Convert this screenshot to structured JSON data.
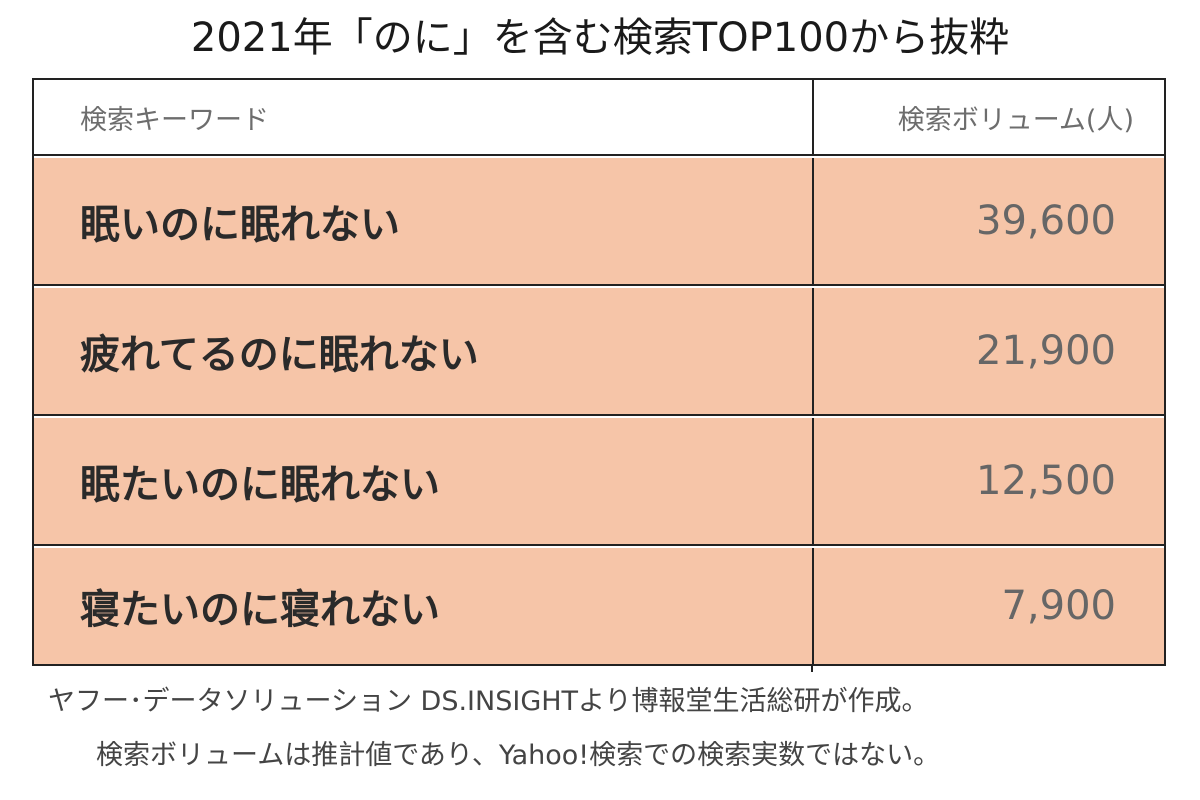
{
  "title": "2021年「のに」を含む検索TOP100から抜粋",
  "table": {
    "headers": {
      "keyword": "検索キーワード",
      "volume": "検索ボリューム(人)"
    },
    "rows": [
      {
        "keyword": "眠いのに眠れない",
        "volume": "39,600"
      },
      {
        "keyword": "疲れてるのに眠れない",
        "volume": "21,900"
      },
      {
        "keyword": "眠たいのに眠れない",
        "volume": "12,500"
      },
      {
        "keyword": "寝たいのに寝れない",
        "volume": "7,900"
      }
    ],
    "row_fill_color": "#f6c5a8"
  },
  "footnotes": [
    "ヤフー･データソリューション DS.INSIGHTより博報堂生活総研が作成。",
    "検索ボリュームは推計値であり、Yahoo!検索での検索実数ではない。"
  ]
}
